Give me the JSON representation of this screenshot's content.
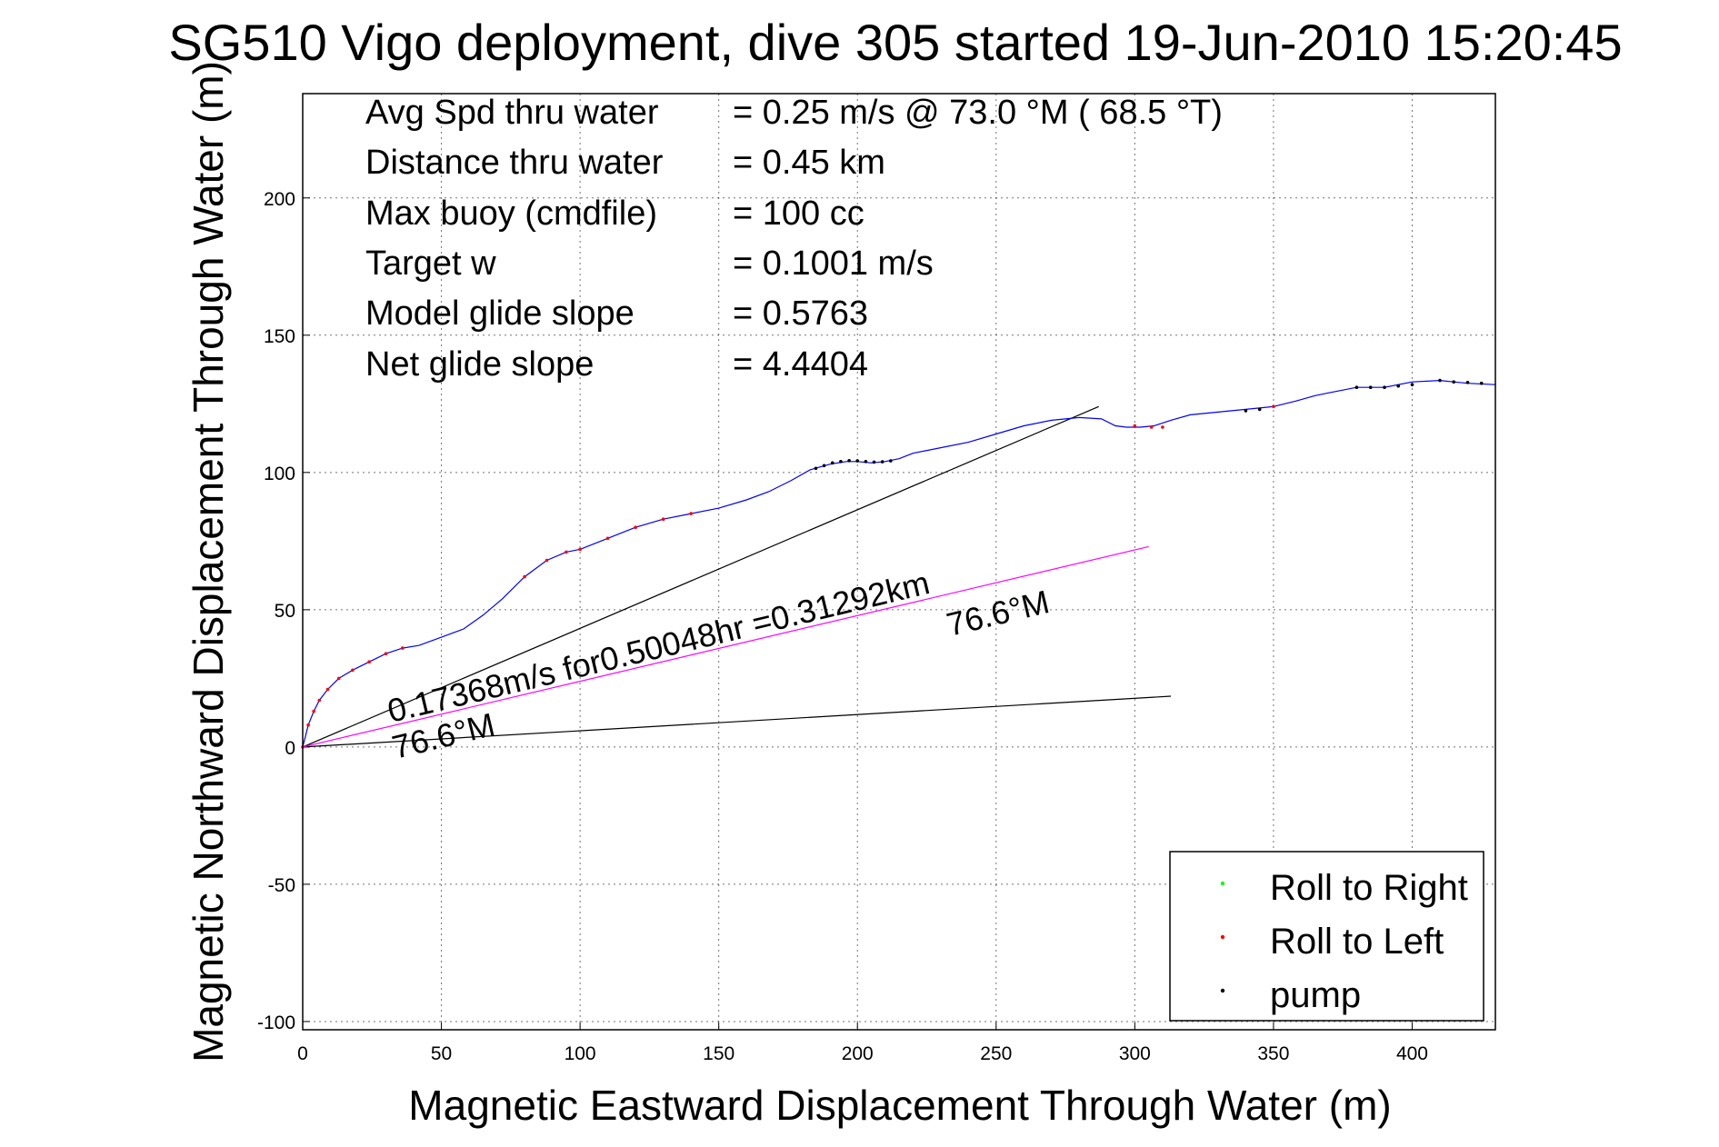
{
  "chart_data": {
    "type": "line",
    "title": "SG510 Vigo deployment, dive 305 started 19-Jun-2010 15:20:45",
    "xlabel": "Magnetic Eastward Displacement Through Water (m)",
    "ylabel": "Magnetic Northward Displacement Through Water (m)",
    "xlim": [
      0,
      430
    ],
    "ylim": [
      -103,
      238
    ],
    "xticks": [
      0,
      50,
      100,
      150,
      200,
      250,
      300,
      350,
      400
    ],
    "yticks": [
      -100,
      -50,
      0,
      50,
      100,
      150,
      200
    ],
    "grid": true,
    "legend_position": "bottom-right",
    "info_lines": [
      {
        "label": "Avg Spd thru water",
        "value": "=  0.25 m/s @  73.0 °M ( 68.5 °T)"
      },
      {
        "label": "Distance thru water",
        "value": "=  0.45 km"
      },
      {
        "label": "Max buoy (cmdfile)",
        "value": "= 100 cc"
      },
      {
        "label": "Target w",
        "value": "= 0.1001 m/s"
      },
      {
        "label": "Model glide slope",
        "value": "= 0.5763"
      },
      {
        "label": "Net glide slope",
        "value": "= 4.4404"
      }
    ],
    "annotations": {
      "speed_text": "0.17368m/s for0.50048hr =0.31292km",
      "heading_text_1": "76.6°M",
      "heading_text_2": "76.6°M"
    },
    "track": {
      "color": "#0000ff",
      "x": [
        0,
        1,
        2,
        4,
        6,
        9,
        13,
        18,
        24,
        30,
        36,
        42,
        50,
        58,
        65,
        72,
        80,
        88,
        95,
        100,
        110,
        120,
        130,
        140,
        150,
        160,
        168,
        176,
        183,
        190,
        196,
        200,
        205,
        210,
        215,
        220,
        230,
        240,
        250,
        260,
        270,
        280,
        288,
        293,
        297,
        302,
        307,
        313,
        320,
        330,
        340,
        350,
        358,
        365,
        370,
        380,
        390,
        400,
        410,
        415,
        420,
        430
      ],
      "y": [
        0,
        4,
        8,
        13,
        17,
        21,
        25,
        28,
        31,
        34,
        36,
        37,
        40,
        43,
        48,
        54,
        62,
        68,
        71,
        72,
        76,
        80,
        83,
        85,
        87,
        90,
        93,
        97,
        101,
        103,
        104,
        104,
        103.5,
        104,
        105,
        107,
        109,
        111,
        114,
        117,
        119,
        120,
        119.5,
        117,
        116.5,
        116.5,
        117,
        119,
        121,
        122,
        123,
        124,
        126,
        128,
        129,
        131,
        131,
        133,
        133.5,
        133,
        132.5,
        132
      ]
    },
    "average_line": {
      "color": "#ff00ff",
      "x": [
        0,
        305
      ],
      "y": [
        0,
        73
      ]
    },
    "reference_lines": [
      {
        "color": "#000000",
        "x": [
          0,
          287
        ],
        "y": [
          0,
          124
        ]
      },
      {
        "color": "#000000",
        "x": [
          0,
          313
        ],
        "y": [
          0,
          18.5
        ]
      }
    ],
    "series": [
      {
        "name": "Roll to Right",
        "color": "#00ff00",
        "x": [],
        "y": []
      },
      {
        "name": "Roll to Left",
        "color": "#ff0000",
        "x": [
          0,
          2,
          4,
          6,
          9,
          13,
          18,
          24,
          30,
          36,
          80,
          88,
          95,
          100,
          110,
          120,
          130,
          140,
          300,
          306,
          310,
          350
        ],
        "y": [
          0,
          8,
          13,
          17,
          21,
          25,
          28,
          31,
          34,
          36,
          62,
          68,
          71,
          72,
          76,
          80,
          83,
          85,
          117,
          116.5,
          116.5,
          124
        ]
      },
      {
        "name": "pump",
        "color": "#000000",
        "x": [
          185,
          188,
          191,
          194,
          197,
          200,
          203,
          206,
          209,
          212,
          380,
          385,
          390,
          395,
          400,
          410,
          415,
          420,
          425,
          340,
          345
        ],
        "y": [
          101.5,
          102.5,
          103.5,
          104,
          104.3,
          104.2,
          104,
          103.8,
          103.9,
          104.2,
          131,
          131,
          131,
          131.5,
          132,
          133.5,
          133,
          132.8,
          132.5,
          122.5,
          123
        ]
      }
    ]
  }
}
